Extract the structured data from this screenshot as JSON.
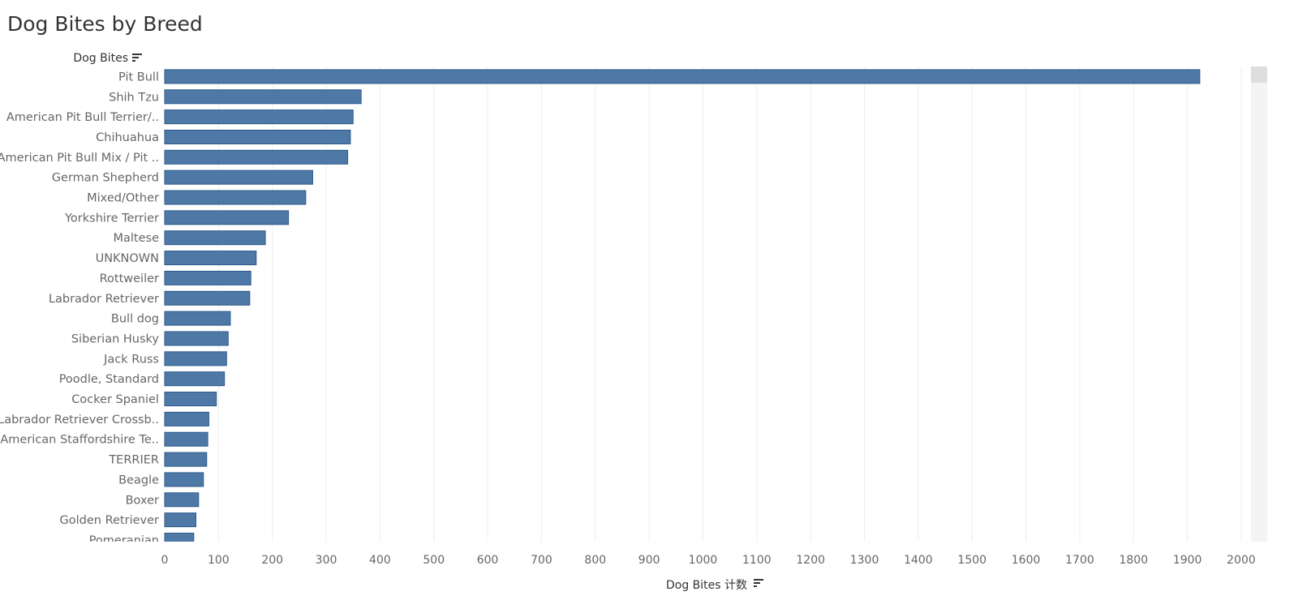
{
  "chart_data": {
    "type": "bar",
    "orientation": "horizontal",
    "title": "Dog Bites by Breed",
    "row_header": "Dog Bites",
    "xlabel": "Dog Bites 计数",
    "categories": [
      "Pit Bull",
      "Shih Tzu",
      "American Pit Bull Terrier/..",
      "Chihuahua",
      "American Pit Bull Mix / Pit ..",
      "German Shepherd",
      "Mixed/Other",
      "Yorkshire Terrier",
      "Maltese",
      "UNKNOWN",
      "Rottweiler",
      "Labrador Retriever",
      "Bull dog",
      "Siberian Husky",
      "Jack Russ",
      "Poodle, Standard",
      "Cocker Spaniel",
      "Labrador Retriever Crossb..",
      "American Staffordshire Te..",
      "TERRIER",
      "Beagle",
      "Boxer",
      "Golden Retriever",
      "Pomeranian"
    ],
    "values": [
      1923,
      365,
      350,
      345,
      340,
      275,
      262,
      230,
      187,
      170,
      160,
      158,
      122,
      118,
      115,
      111,
      96,
      82,
      80,
      78,
      72,
      63,
      58,
      54
    ],
    "xlim": [
      0,
      2000
    ],
    "xticks": [
      0,
      100,
      200,
      300,
      400,
      500,
      600,
      700,
      800,
      900,
      1000,
      1100,
      1200,
      1300,
      1400,
      1500,
      1600,
      1700,
      1800,
      1900,
      2000
    ],
    "grid": "vertical",
    "legend": "none",
    "colors": {
      "bar": "#4e79a7",
      "bar_stroke": "#2d5a8a",
      "grid": "#eeeeee",
      "text": "#666666",
      "title": "#333333",
      "header": "#333333",
      "scrollbar_track": "#f4f4f4",
      "scrollbar_thumb": "#dedede"
    },
    "sort_icon": "sort-descending-icon"
  }
}
